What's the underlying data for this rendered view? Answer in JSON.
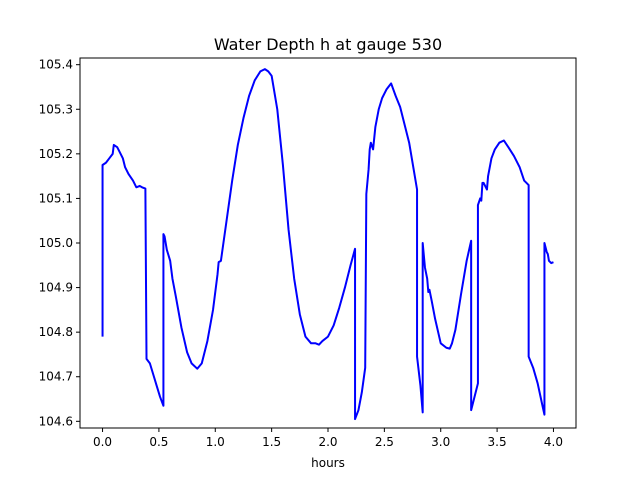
{
  "chart_data": {
    "type": "line",
    "title": "Water Depth h at gauge 530",
    "xlabel": "hours",
    "ylabel": "",
    "xlim": [
      -0.2,
      4.2
    ],
    "ylim": [
      104.585,
      105.415
    ],
    "xticks": [
      0.0,
      0.5,
      1.0,
      1.5,
      2.0,
      2.5,
      3.0,
      3.5,
      4.0
    ],
    "xtick_labels": [
      "0.0",
      "0.5",
      "1.0",
      "1.5",
      "2.0",
      "2.5",
      "3.0",
      "3.5",
      "4.0"
    ],
    "yticks": [
      104.6,
      104.7,
      104.8,
      104.9,
      105.0,
      105.1,
      105.2,
      105.3,
      105.4
    ],
    "ytick_labels": [
      "104.6",
      "104.7",
      "104.8",
      "104.9",
      "105.0",
      "105.1",
      "105.2",
      "105.3",
      "105.4"
    ],
    "grid": false,
    "series": [
      {
        "color": "#0000ff",
        "x": [
          0.0,
          0.0,
          0.03,
          0.06,
          0.09,
          0.1,
          0.13,
          0.15,
          0.18,
          0.2,
          0.23,
          0.27,
          0.3,
          0.33,
          0.35,
          0.38,
          0.39,
          0.39,
          0.42,
          0.45,
          0.48,
          0.51,
          0.54,
          0.54,
          0.55,
          0.57,
          0.6,
          0.62,
          0.65,
          0.7,
          0.75,
          0.79,
          0.84,
          0.88,
          0.93,
          0.98,
          1.02,
          1.03,
          1.05,
          1.1,
          1.15,
          1.2,
          1.25,
          1.3,
          1.35,
          1.4,
          1.44,
          1.47,
          1.5,
          1.55,
          1.6,
          1.65,
          1.7,
          1.75,
          1.8,
          1.85,
          1.89,
          1.92,
          1.95,
          2.0,
          2.05,
          2.1,
          2.15,
          2.2,
          2.24,
          2.24,
          2.27,
          2.3,
          2.33,
          2.34,
          2.36,
          2.37,
          2.38,
          2.4,
          2.42,
          2.45,
          2.48,
          2.52,
          2.56,
          2.6,
          2.64,
          2.68,
          2.72,
          2.76,
          2.79,
          2.79,
          2.82,
          2.84,
          2.84,
          2.86,
          2.88,
          2.89,
          2.9,
          2.92,
          2.95,
          3.0,
          3.05,
          3.08,
          3.1,
          3.13,
          3.18,
          3.23,
          3.27,
          3.27,
          3.3,
          3.33,
          3.33,
          3.35,
          3.36,
          3.37,
          3.38,
          3.4,
          3.41,
          3.42,
          3.45,
          3.48,
          3.52,
          3.56,
          3.6,
          3.65,
          3.7,
          3.74,
          3.78,
          3.78,
          3.82,
          3.86,
          3.9,
          3.92,
          3.92,
          3.94,
          3.95,
          3.96,
          3.98,
          4.0
        ],
        "y": [
          104.79,
          105.175,
          105.18,
          105.19,
          105.2,
          105.22,
          105.215,
          105.205,
          105.19,
          105.17,
          105.155,
          105.14,
          105.125,
          105.128,
          105.125,
          105.122,
          104.74,
          104.74,
          104.73,
          104.705,
          104.68,
          104.655,
          104.635,
          105.02,
          105.015,
          104.985,
          104.96,
          104.92,
          104.88,
          104.81,
          104.755,
          104.73,
          104.718,
          104.73,
          104.78,
          104.85,
          104.93,
          104.957,
          104.96,
          105.05,
          105.14,
          105.22,
          105.28,
          105.33,
          105.365,
          105.385,
          105.39,
          105.385,
          105.375,
          105.3,
          105.175,
          105.03,
          104.92,
          104.84,
          104.79,
          104.775,
          104.775,
          104.772,
          104.78,
          104.79,
          104.815,
          104.855,
          104.9,
          104.95,
          104.987,
          104.605,
          104.625,
          104.665,
          104.72,
          105.11,
          105.165,
          105.21,
          105.225,
          105.21,
          105.26,
          105.3,
          105.325,
          105.345,
          105.358,
          105.33,
          105.305,
          105.265,
          105.225,
          105.165,
          105.12,
          104.745,
          104.68,
          104.62,
          105.0,
          104.945,
          104.92,
          104.89,
          104.895,
          104.87,
          104.83,
          104.775,
          104.765,
          104.763,
          104.775,
          104.805,
          104.885,
          104.96,
          105.005,
          104.625,
          104.655,
          104.685,
          105.085,
          105.1,
          105.095,
          105.135,
          105.135,
          105.125,
          105.12,
          105.15,
          105.19,
          105.21,
          105.225,
          105.23,
          105.215,
          105.195,
          105.17,
          105.14,
          105.13,
          104.745,
          104.72,
          104.685,
          104.638,
          104.615,
          105.0,
          104.98,
          104.975,
          104.96,
          104.955,
          104.957
        ]
      }
    ]
  }
}
